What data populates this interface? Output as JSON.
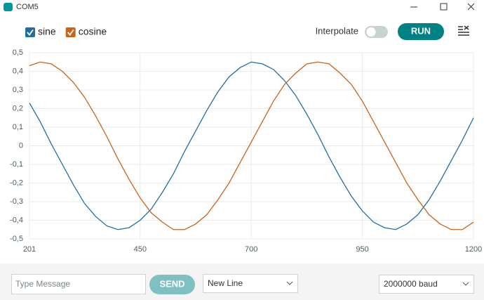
{
  "window": {
    "title": "COM5"
  },
  "controls": {
    "interpolate_label": "Interpolate",
    "run_button": "RUN"
  },
  "footer": {
    "message_placeholder": "Type Message",
    "send_button": "SEND",
    "line_ending": "New Line",
    "baud_rate": "2000000 baud"
  },
  "chart_data": {
    "type": "line",
    "x": [
      201,
      225,
      250,
      275,
      300,
      325,
      350,
      375,
      400,
      425,
      450,
      475,
      500,
      525,
      550,
      575,
      600,
      625,
      650,
      675,
      700,
      725,
      750,
      775,
      800,
      825,
      850,
      875,
      900,
      925,
      950,
      975,
      1000,
      1025,
      1050,
      1075,
      1100,
      1125,
      1150,
      1175,
      1200
    ],
    "series": [
      {
        "name": "sine",
        "color": "#1f6ea4",
        "values": [
          0.23,
          0.13,
          0.01,
          -0.1,
          -0.21,
          -0.31,
          -0.38,
          -0.43,
          -0.45,
          -0.44,
          -0.4,
          -0.34,
          -0.25,
          -0.15,
          -0.03,
          0.08,
          0.19,
          0.29,
          0.37,
          0.42,
          0.45,
          0.44,
          0.41,
          0.35,
          0.27,
          0.17,
          0.06,
          -0.06,
          -0.17,
          -0.27,
          -0.35,
          -0.41,
          -0.44,
          -0.45,
          -0.42,
          -0.37,
          -0.29,
          -0.19,
          -0.08,
          0.03,
          0.15
        ]
      },
      {
        "name": "cosine",
        "color": "#c8641b",
        "values": [
          0.43,
          0.45,
          0.44,
          0.4,
          0.34,
          0.26,
          0.16,
          0.05,
          -0.07,
          -0.18,
          -0.28,
          -0.36,
          -0.41,
          -0.45,
          -0.45,
          -0.42,
          -0.37,
          -0.29,
          -0.2,
          -0.09,
          0.02,
          0.13,
          0.24,
          0.33,
          0.39,
          0.44,
          0.45,
          0.44,
          0.39,
          0.33,
          0.24,
          0.13,
          0.02,
          -0.09,
          -0.2,
          -0.29,
          -0.37,
          -0.42,
          -0.45,
          -0.45,
          -0.41
        ]
      }
    ],
    "xlim": [
      201,
      1200
    ],
    "xticks": [
      201,
      450,
      700,
      950,
      1200
    ],
    "ylim": [
      -0.5,
      0.5
    ],
    "yticks": [
      {
        "value": 0.5,
        "label": "0,5"
      },
      {
        "value": 0.4,
        "label": "0,4"
      },
      {
        "value": 0.3,
        "label": "0,3"
      },
      {
        "value": 0.2,
        "label": "0,2"
      },
      {
        "value": 0.1,
        "label": "0,1"
      },
      0,
      {
        "value": -0.1,
        "label": "-0,1"
      },
      {
        "value": -0.2,
        "label": "-0,2"
      },
      {
        "value": -0.3,
        "label": "-0,3"
      },
      {
        "value": -0.4,
        "label": "-0,4"
      },
      {
        "value": -0.5,
        "label": "-0,5"
      }
    ],
    "grid": true
  }
}
